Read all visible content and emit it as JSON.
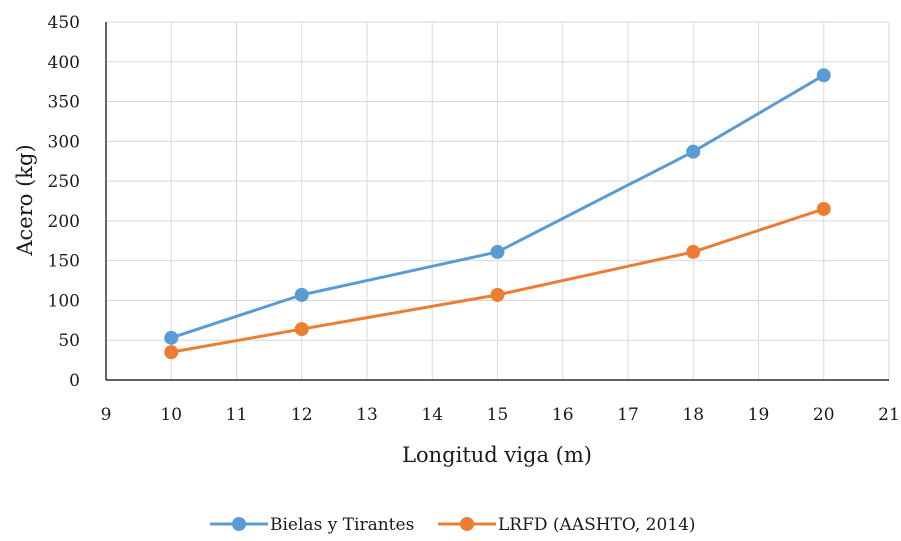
{
  "chart_data": {
    "type": "line",
    "xlabel": "Longitud viga (m)",
    "ylabel": "Acero (kg)",
    "xlim": [
      9,
      21
    ],
    "ylim": [
      0,
      450
    ],
    "x_ticks": [
      9,
      10,
      11,
      12,
      13,
      14,
      15,
      16,
      17,
      18,
      19,
      20,
      21
    ],
    "y_ticks": [
      0,
      50,
      100,
      150,
      200,
      250,
      300,
      350,
      400,
      450
    ],
    "grid": true,
    "legend_position": "bottom",
    "series": [
      {
        "name": "Bielas y Tirantes",
        "color": "#5b9bd5",
        "x": [
          10,
          12,
          15,
          18,
          20
        ],
        "y": [
          53,
          107,
          161,
          287,
          383
        ]
      },
      {
        "name": "LRFD (AASHTO, 2014)",
        "color": "#ed7d31",
        "x": [
          10,
          12,
          15,
          18,
          20
        ],
        "y": [
          35,
          64,
          107,
          161,
          215
        ]
      }
    ]
  }
}
